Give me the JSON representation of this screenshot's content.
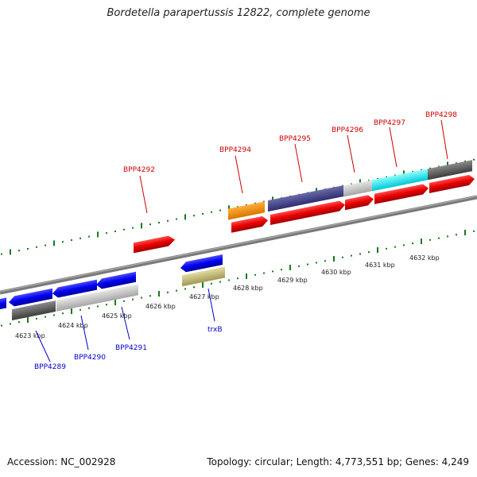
{
  "header": {
    "title": "Bordetella parapertussis 12822, complete genome"
  },
  "footer": {
    "accession": "Accession: NC_002928",
    "summary": "Topology: circular; Length: 4,773,551 bp; Genes: 4,249"
  },
  "colors": {
    "forward_label": "#cc0000",
    "reverse_label": "#0000cc",
    "backbone": "#888888",
    "tick": "#1a7a1a"
  },
  "kbp_ticks": [
    "4623 kbp",
    "4624 kbp",
    "4625 kbp",
    "4626 kbp",
    "4627 kbp",
    "4628 kbp",
    "4629 kbp",
    "4630 kbp",
    "4631 kbp",
    "4632 kbp"
  ],
  "forward_gene_labels": [
    "BPP4292",
    "BPP4294",
    "BPP4295",
    "BPP4296",
    "BPP4297",
    "BPP4298"
  ],
  "reverse_gene_labels": [
    "BPP4289",
    "BPP4290",
    "BPP4291",
    "trxB"
  ]
}
